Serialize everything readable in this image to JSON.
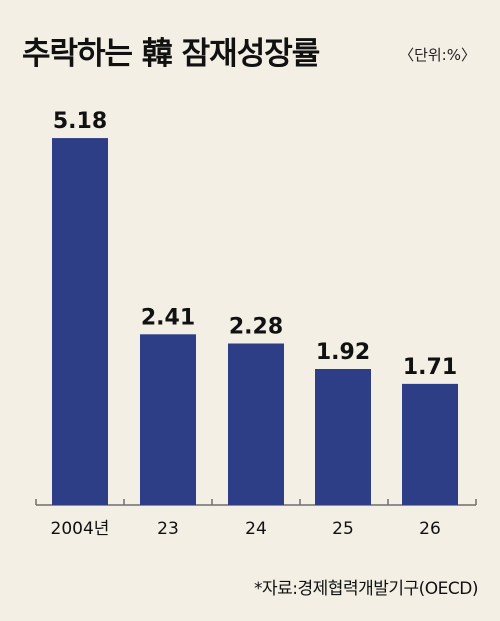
{
  "header": {
    "title": "추락하는 韓 잠재성장률",
    "unit": "〈단위:%〉"
  },
  "footer": {
    "source": "*자료:경제협력개발기구(OECD)"
  },
  "colors": {
    "bar": "#2e3e86",
    "axis": "#6e6e6e",
    "background": "#f3efe4"
  },
  "chart_data": {
    "type": "bar",
    "title": "추락하는 韓 잠재성장률",
    "categories": [
      "2004년",
      "23",
      "24",
      "25",
      "26"
    ],
    "values": [
      5.18,
      2.41,
      2.28,
      1.92,
      1.71
    ],
    "value_labels": [
      "5.18",
      "2.41",
      "2.28",
      "1.92",
      "1.71"
    ],
    "ylim": [
      0,
      6
    ],
    "grid": false,
    "legend": "none"
  }
}
